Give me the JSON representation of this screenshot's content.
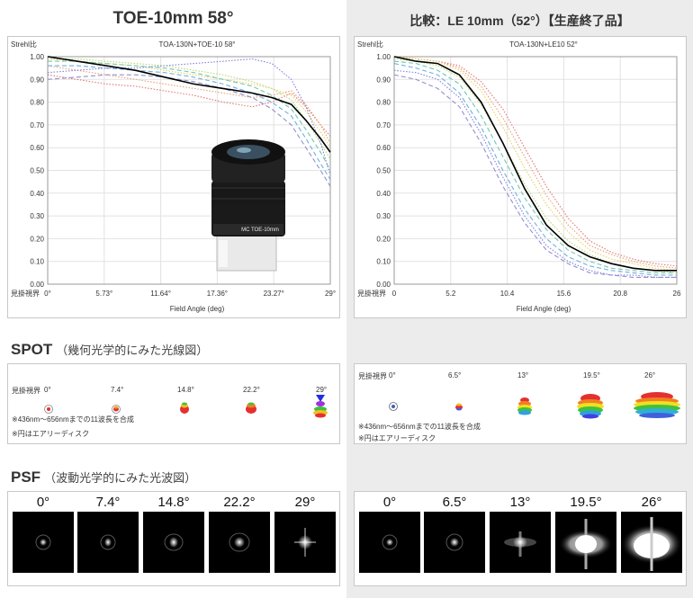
{
  "left": {
    "title": "TOE-10mm 58°",
    "chart": {
      "type": "line",
      "title": "TOA-130N+TOE-10 58°",
      "ylabel": "Strehl比",
      "xlabel": "Field Angle (deg)",
      "x_axis_name": "見掛視界",
      "xticks": [
        "0°",
        "5.73°",
        "11.64°",
        "17.36°",
        "23.27°",
        "29°"
      ],
      "yticks": [
        "0.00",
        "0.10",
        "0.20",
        "0.30",
        "0.40",
        "0.50",
        "0.60",
        "0.70",
        "0.80",
        "0.90",
        "1.00"
      ],
      "xlim": [
        0,
        29
      ],
      "ylim": [
        0,
        1
      ]
    },
    "spot": {
      "axis_name": "見掛視界",
      "angles": [
        "0°",
        "7.4°",
        "14.8°",
        "22.2°",
        "29°"
      ]
    },
    "psf": {
      "angles": [
        "0°",
        "7.4°",
        "14.8°",
        "22.2°",
        "29°"
      ]
    }
  },
  "right": {
    "title": "比較：LE 10mm（52°）【生産終了品】",
    "chart": {
      "type": "line",
      "title": "TOA-130N+LE10 52°",
      "ylabel": "Strehl比",
      "xlabel": "Field Angle (deg)",
      "x_axis_name": "見掛視界",
      "xticks": [
        "0",
        "5.2",
        "10.4",
        "15.6",
        "20.8",
        "26"
      ],
      "yticks": [
        "0.00",
        "0.10",
        "0.20",
        "0.30",
        "0.40",
        "0.50",
        "0.60",
        "0.70",
        "0.80",
        "0.90",
        "1.00"
      ],
      "xlim": [
        0,
        26
      ],
      "ylim": [
        0,
        1
      ]
    },
    "spot": {
      "axis_name": "見掛視界",
      "angles": [
        "0°",
        "6.5°",
        "13°",
        "19.5°",
        "26°"
      ]
    },
    "psf": {
      "angles": [
        "0°",
        "6.5°",
        "13°",
        "19.5°",
        "26°"
      ]
    }
  },
  "sections": {
    "spot_title": "SPOT",
    "spot_sub": "（幾何光学的にみた光線図）",
    "psf_title": "PSF",
    "psf_sub": "（波動光学的にみた光波図）"
  },
  "notes": {
    "wavelength": "※436nm～656nmまでの11波長を合成",
    "airy": "※円はエアリーディスク"
  },
  "eyepiece_label": "MC TOE-10mm",
  "chart_data": [
    {
      "type": "line",
      "title": "TOA-130N+TOE-10 58°",
      "ylabel": "Strehl比",
      "xlabel": "Field Angle (deg)",
      "xlim": [
        0,
        29
      ],
      "ylim": [
        0,
        1
      ],
      "series": [
        {
          "color": "#000000",
          "style": "solid",
          "x": [
            0,
            3,
            6,
            9,
            12,
            15,
            18,
            21,
            23,
            25,
            26.5,
            28,
            29
          ],
          "y": [
            1.0,
            0.98,
            0.96,
            0.94,
            0.91,
            0.88,
            0.86,
            0.84,
            0.82,
            0.79,
            0.72,
            0.64,
            0.58
          ]
        },
        {
          "color": "#e57373",
          "style": "dotted",
          "x": [
            0,
            3,
            6,
            9,
            12,
            15,
            18,
            21,
            23,
            25,
            26.5,
            28,
            29
          ],
          "y": [
            0.92,
            0.9,
            0.88,
            0.87,
            0.85,
            0.83,
            0.8,
            0.78,
            0.8,
            0.84,
            0.78,
            0.7,
            0.65
          ]
        },
        {
          "color": "#e8a070",
          "style": "dotted",
          "x": [
            0,
            3,
            6,
            9,
            12,
            15,
            18,
            21,
            23,
            25,
            26.5,
            28,
            29
          ],
          "y": [
            0.96,
            0.94,
            0.92,
            0.9,
            0.88,
            0.86,
            0.84,
            0.82,
            0.83,
            0.85,
            0.79,
            0.7,
            0.62
          ]
        },
        {
          "color": "#e8d060",
          "style": "dotted",
          "x": [
            0,
            3,
            6,
            9,
            12,
            15,
            18,
            21,
            23,
            25,
            26.5,
            28,
            29
          ],
          "y": [
            0.99,
            0.98,
            0.97,
            0.96,
            0.94,
            0.92,
            0.9,
            0.88,
            0.86,
            0.83,
            0.76,
            0.67,
            0.6
          ]
        },
        {
          "color": "#b8d870",
          "style": "dotted",
          "x": [
            0,
            3,
            6,
            9,
            12,
            15,
            18,
            21,
            23,
            25,
            26.5,
            28,
            29
          ],
          "y": [
            0.99,
            0.99,
            0.98,
            0.97,
            0.96,
            0.94,
            0.92,
            0.89,
            0.86,
            0.81,
            0.72,
            0.62,
            0.55
          ]
        },
        {
          "color": "#70c8b0",
          "style": "dashed",
          "x": [
            0,
            3,
            6,
            9,
            12,
            15,
            18,
            21,
            23,
            25,
            26.5,
            28,
            29
          ],
          "y": [
            0.98,
            0.98,
            0.97,
            0.96,
            0.95,
            0.93,
            0.9,
            0.87,
            0.83,
            0.77,
            0.68,
            0.58,
            0.5
          ]
        },
        {
          "color": "#70b0e0",
          "style": "dashed",
          "x": [
            0,
            3,
            6,
            9,
            12,
            15,
            18,
            21,
            23,
            25,
            26.5,
            28,
            29
          ],
          "y": [
            0.96,
            0.96,
            0.95,
            0.94,
            0.93,
            0.91,
            0.88,
            0.84,
            0.8,
            0.74,
            0.64,
            0.53,
            0.46
          ]
        },
        {
          "color": "#8080e0",
          "style": "dotted",
          "x": [
            0,
            3,
            6,
            9,
            12,
            15,
            18,
            21,
            23,
            25,
            26.5,
            28,
            29
          ],
          "y": [
            0.93,
            0.94,
            0.95,
            0.95,
            0.96,
            0.97,
            0.98,
            0.99,
            0.97,
            0.9,
            0.78,
            0.62,
            0.48
          ]
        },
        {
          "color": "#9090d0",
          "style": "dashed",
          "x": [
            0,
            3,
            6,
            9,
            12,
            15,
            18,
            21,
            23,
            25,
            26.5,
            28,
            29
          ],
          "y": [
            0.9,
            0.91,
            0.92,
            0.92,
            0.91,
            0.89,
            0.86,
            0.82,
            0.77,
            0.7,
            0.6,
            0.5,
            0.43
          ]
        }
      ]
    },
    {
      "type": "line",
      "title": "TOA-130N+LE10 52°",
      "ylabel": "Strehl比",
      "xlabel": "Field Angle (deg)",
      "xlim": [
        0,
        26
      ],
      "ylim": [
        0,
        1
      ],
      "series": [
        {
          "color": "#000000",
          "style": "solid",
          "x": [
            0,
            2,
            4,
            6,
            8,
            10,
            12,
            14,
            16,
            18,
            20,
            22,
            24,
            26
          ],
          "y": [
            1.0,
            0.98,
            0.97,
            0.92,
            0.8,
            0.62,
            0.42,
            0.26,
            0.17,
            0.12,
            0.09,
            0.07,
            0.06,
            0.06
          ]
        },
        {
          "color": "#e57373",
          "style": "dotted",
          "x": [
            0,
            2,
            4,
            6,
            8,
            10,
            12,
            14,
            16,
            18,
            20,
            22,
            24,
            26
          ],
          "y": [
            1.0,
            0.99,
            0.98,
            0.96,
            0.89,
            0.77,
            0.6,
            0.43,
            0.29,
            0.19,
            0.14,
            0.11,
            0.09,
            0.08
          ]
        },
        {
          "color": "#e8a070",
          "style": "dotted",
          "x": [
            0,
            2,
            4,
            6,
            8,
            10,
            12,
            14,
            16,
            18,
            20,
            22,
            24,
            26
          ],
          "y": [
            1.0,
            0.99,
            0.98,
            0.95,
            0.87,
            0.73,
            0.56,
            0.39,
            0.26,
            0.17,
            0.13,
            0.1,
            0.08,
            0.07
          ]
        },
        {
          "color": "#e8d060",
          "style": "dotted",
          "x": [
            0,
            2,
            4,
            6,
            8,
            10,
            12,
            14,
            16,
            18,
            20,
            22,
            24,
            26
          ],
          "y": [
            1.0,
            0.99,
            0.98,
            0.94,
            0.85,
            0.69,
            0.51,
            0.35,
            0.23,
            0.15,
            0.11,
            0.09,
            0.07,
            0.06
          ]
        },
        {
          "color": "#b8d870",
          "style": "dotted",
          "x": [
            0,
            2,
            4,
            6,
            8,
            10,
            12,
            14,
            16,
            18,
            20,
            22,
            24,
            26
          ],
          "y": [
            0.99,
            0.98,
            0.96,
            0.91,
            0.79,
            0.62,
            0.44,
            0.29,
            0.19,
            0.13,
            0.09,
            0.07,
            0.06,
            0.05
          ]
        },
        {
          "color": "#70c8b0",
          "style": "dashed",
          "x": [
            0,
            2,
            4,
            6,
            8,
            10,
            12,
            14,
            16,
            18,
            20,
            22,
            24,
            26
          ],
          "y": [
            0.98,
            0.97,
            0.94,
            0.88,
            0.74,
            0.56,
            0.38,
            0.24,
            0.15,
            0.1,
            0.07,
            0.06,
            0.05,
            0.05
          ]
        },
        {
          "color": "#70b0e0",
          "style": "dashed",
          "x": [
            0,
            2,
            4,
            6,
            8,
            10,
            12,
            14,
            16,
            18,
            20,
            22,
            24,
            26
          ],
          "y": [
            0.97,
            0.95,
            0.92,
            0.84,
            0.69,
            0.5,
            0.33,
            0.2,
            0.12,
            0.08,
            0.06,
            0.05,
            0.04,
            0.04
          ]
        },
        {
          "color": "#8080e0",
          "style": "dotted",
          "x": [
            0,
            2,
            4,
            6,
            8,
            10,
            12,
            14,
            16,
            18,
            20,
            22,
            24,
            26
          ],
          "y": [
            0.94,
            0.93,
            0.9,
            0.82,
            0.66,
            0.47,
            0.3,
            0.17,
            0.1,
            0.06,
            0.04,
            0.04,
            0.03,
            0.03
          ]
        },
        {
          "color": "#9090d0",
          "style": "dashed",
          "x": [
            0,
            2,
            4,
            6,
            8,
            10,
            12,
            14,
            16,
            18,
            20,
            22,
            24,
            26
          ],
          "y": [
            0.92,
            0.9,
            0.86,
            0.78,
            0.62,
            0.43,
            0.27,
            0.15,
            0.09,
            0.05,
            0.04,
            0.03,
            0.03,
            0.03
          ]
        }
      ]
    }
  ]
}
